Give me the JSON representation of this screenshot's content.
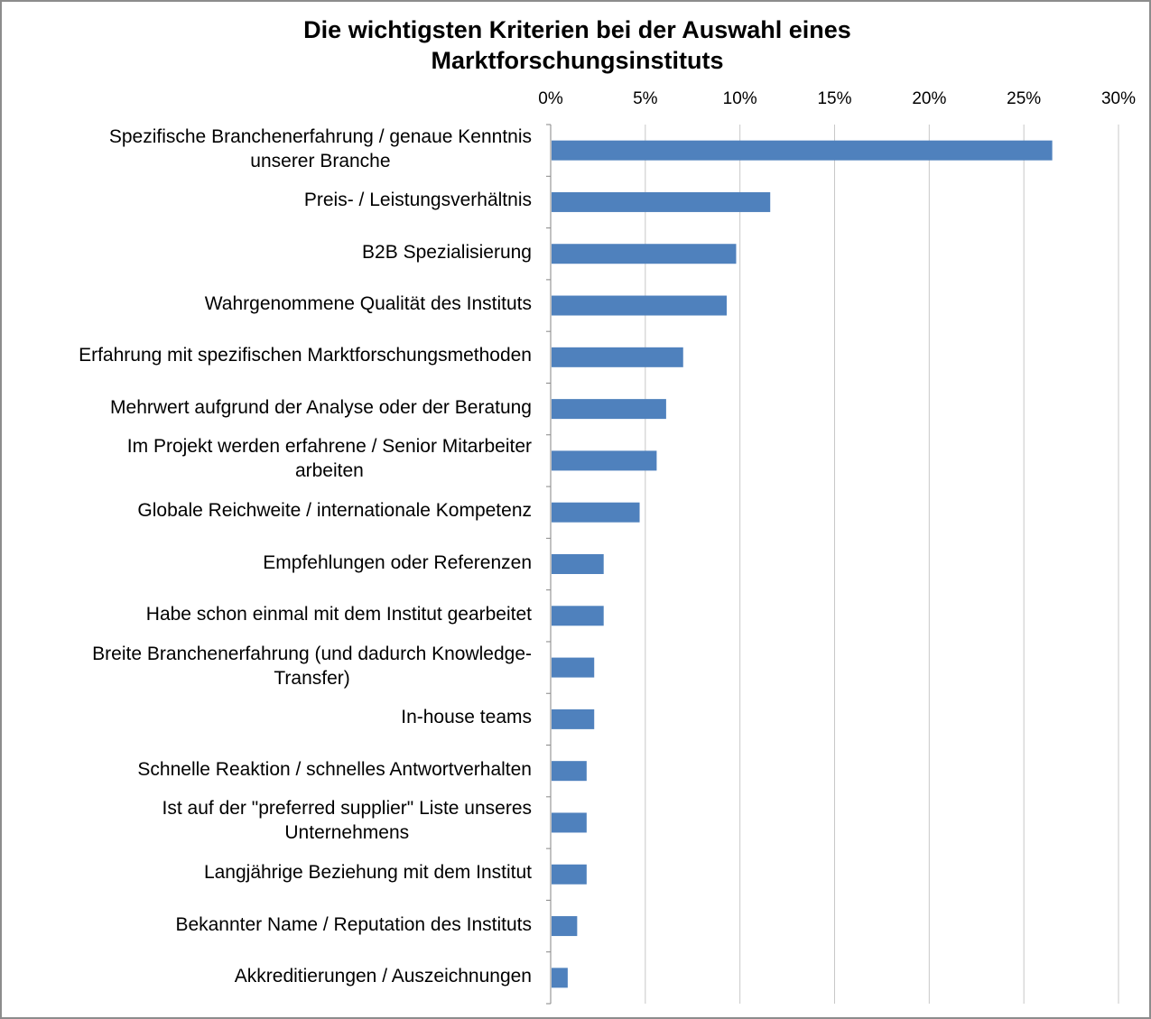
{
  "chart_data": {
    "type": "bar",
    "orientation": "horizontal",
    "title_lines": [
      "Die wichtigsten Kriterien bei der Auswahl eines",
      "Marktforschungsinstituts"
    ],
    "xlim": [
      0,
      30
    ],
    "tick_values": [
      0,
      5,
      10,
      15,
      20,
      25,
      30
    ],
    "tick_labels": [
      "0%",
      "5%",
      "10%",
      "15%",
      "20%",
      "25%",
      "30%"
    ],
    "x_axis_position": "top",
    "grid": "vertical",
    "bar_color": "#4F81BD",
    "categories": [
      [
        "Spezifische Branchenerfahrung / genaue Kenntnis",
        "unserer Branche"
      ],
      [
        "Preis- / Leistungsverhältnis"
      ],
      [
        "B2B Spezialisierung"
      ],
      [
        "Wahrgenommene Qualität des Instituts"
      ],
      [
        "Erfahrung mit spezifischen Marktforschungsmethoden"
      ],
      [
        "Mehrwert aufgrund der Analyse oder der Beratung"
      ],
      [
        "Im Projekt werden erfahrene / Senior Mitarbeiter",
        "arbeiten"
      ],
      [
        "Globale Reichweite / internationale Kompetenz"
      ],
      [
        "Empfehlungen oder Referenzen"
      ],
      [
        "Habe schon einmal mit dem Institut gearbeitet"
      ],
      [
        "Breite Branchenerfahrung (und dadurch Knowledge-",
        "Transfer)"
      ],
      [
        "In-house teams"
      ],
      [
        "Schnelle Reaktion / schnelles Antwortverhalten"
      ],
      [
        "Ist auf der \"preferred supplier\" Liste unseres",
        "Unternehmens"
      ],
      [
        "Langjährige Beziehung mit dem Institut"
      ],
      [
        "Bekannter Name / Reputation des Instituts"
      ],
      [
        "Akkreditierungen / Auszeichnungen"
      ]
    ],
    "values": [
      26.5,
      11.6,
      9.8,
      9.3,
      7.0,
      6.1,
      5.6,
      4.7,
      2.8,
      2.8,
      2.3,
      2.3,
      1.9,
      1.9,
      1.9,
      1.4,
      0.9
    ]
  }
}
